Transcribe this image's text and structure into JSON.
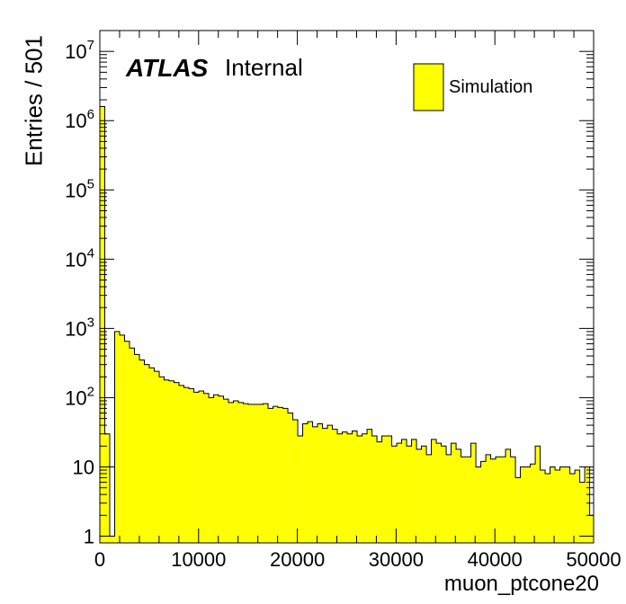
{
  "chart_data": {
    "type": "bar",
    "style": "histogram",
    "title": "",
    "xlabel": "muon_ptcone20",
    "ylabel": "Entries / 501",
    "xlim": [
      0,
      50000
    ],
    "ylim": [
      0.8,
      20000000
    ],
    "yscale": "log",
    "bin_width": 501,
    "x_ticks": [
      "0",
      "10000",
      "20000",
      "30000",
      "40000",
      "50000"
    ],
    "y_ticks": [
      "1",
      "10",
      "10^2",
      "10^3",
      "10^4",
      "10^5",
      "10^6",
      "10^7"
    ],
    "grid": false,
    "legend_position": "top-right",
    "annotation": {
      "atlas": "ATLAS",
      "status": "Internal"
    },
    "colors": {
      "fill": "#ffff00",
      "line": "#000000",
      "axis": "#000000"
    },
    "series": [
      {
        "name": "Simulation",
        "values": [
          1600000,
          30,
          1,
          900,
          800,
          650,
          520,
          420,
          350,
          300,
          270,
          240,
          200,
          180,
          175,
          165,
          150,
          140,
          135,
          120,
          125,
          115,
          100,
          110,
          105,
          95,
          85,
          90,
          85,
          82,
          80,
          80,
          80,
          82,
          70,
          75,
          72,
          70,
          60,
          48,
          28,
          42,
          45,
          38,
          42,
          36,
          40,
          35,
          30,
          32,
          30,
          33,
          28,
          30,
          35,
          28,
          23,
          28,
          28,
          20,
          22,
          25,
          20,
          25,
          18,
          20,
          15,
          25,
          22,
          20,
          15,
          22,
          18,
          14,
          14,
          22,
          10,
          12,
          15,
          13,
          14,
          14,
          18,
          14,
          7,
          10,
          10,
          11,
          20,
          9,
          8,
          10,
          9,
          10,
          10,
          8,
          9,
          6,
          10,
          2
        ]
      }
    ]
  }
}
